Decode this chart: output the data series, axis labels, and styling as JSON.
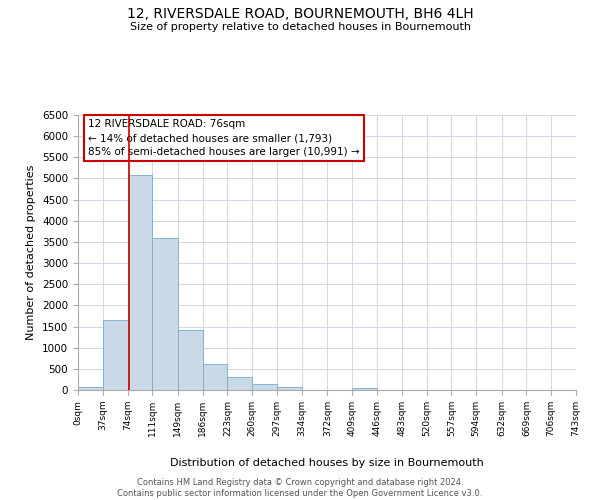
{
  "title": "12, RIVERSDALE ROAD, BOURNEMOUTH, BH6 4LH",
  "subtitle": "Size of property relative to detached houses in Bournemouth",
  "xlabel": "Distribution of detached houses by size in Bournemouth",
  "ylabel": "Number of detached properties",
  "bin_edges": [
    0,
    37,
    74,
    111,
    149,
    186,
    223,
    260,
    297,
    334,
    372,
    409,
    446,
    483,
    520,
    557,
    594,
    632,
    669,
    706,
    743
  ],
  "bar_heights": [
    60,
    1650,
    5080,
    3590,
    1420,
    615,
    305,
    150,
    70,
    0,
    0,
    50,
    0,
    0,
    0,
    0,
    0,
    0,
    0,
    0
  ],
  "bar_color": "#c9d9e8",
  "bar_edgecolor": "#7aaac8",
  "ylim": [
    0,
    6500
  ],
  "yticks": [
    0,
    500,
    1000,
    1500,
    2000,
    2500,
    3000,
    3500,
    4000,
    4500,
    5000,
    5500,
    6000,
    6500
  ],
  "xtick_labels": [
    "0sqm",
    "37sqm",
    "74sqm",
    "111sqm",
    "149sqm",
    "186sqm",
    "223sqm",
    "260sqm",
    "297sqm",
    "334sqm",
    "372sqm",
    "409sqm",
    "446sqm",
    "483sqm",
    "520sqm",
    "557sqm",
    "594sqm",
    "632sqm",
    "669sqm",
    "706sqm",
    "743sqm"
  ],
  "property_size": 76,
  "property_line_color": "#cc0000",
  "annotation_line1": "12 RIVERSDALE ROAD: 76sqm",
  "annotation_line2": "← 14% of detached houses are smaller (1,793)",
  "annotation_line3": "85% of semi-detached houses are larger (10,991) →",
  "annotation_box_edgecolor": "#cc0000",
  "annotation_box_facecolor": "#ffffff",
  "footer_text": "Contains HM Land Registry data © Crown copyright and database right 2024.\nContains public sector information licensed under the Open Government Licence v3.0.",
  "background_color": "#ffffff",
  "grid_color": "#d0d8e8"
}
